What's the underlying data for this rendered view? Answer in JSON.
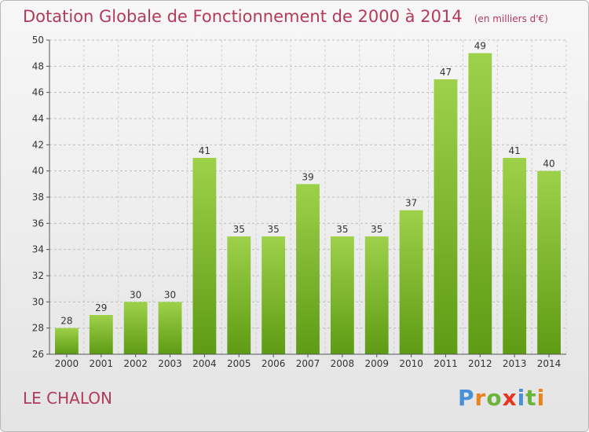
{
  "chart_data": {
    "type": "bar",
    "title": "Dotation Globale de Fonctionnement de 2000 à 2014",
    "unit": "(en milliers d'€)",
    "categories": [
      "2000",
      "2001",
      "2002",
      "2003",
      "2004",
      "2005",
      "2006",
      "2007",
      "2008",
      "2009",
      "2010",
      "2011",
      "2012",
      "2013",
      "2014"
    ],
    "values": [
      28,
      29,
      30,
      30,
      41,
      35,
      35,
      39,
      35,
      35,
      37,
      47,
      49,
      41,
      40
    ],
    "ylim": [
      26,
      50
    ],
    "yticks": [
      26,
      28,
      30,
      32,
      34,
      36,
      38,
      40,
      42,
      44,
      46,
      48,
      50
    ],
    "grid": "horizontal dashed",
    "bar_color": "#7dbb2a"
  },
  "footer": {
    "commune": "LE CHALON",
    "logo": [
      "P",
      "r",
      "o",
      "x",
      "i",
      "t",
      "i"
    ],
    "logo_colors": [
      "#4a90d9",
      "#e8831f",
      "#6bb33a",
      "#e8331f",
      "#4a90d9",
      "#6bb33a",
      "#e8831f"
    ]
  }
}
